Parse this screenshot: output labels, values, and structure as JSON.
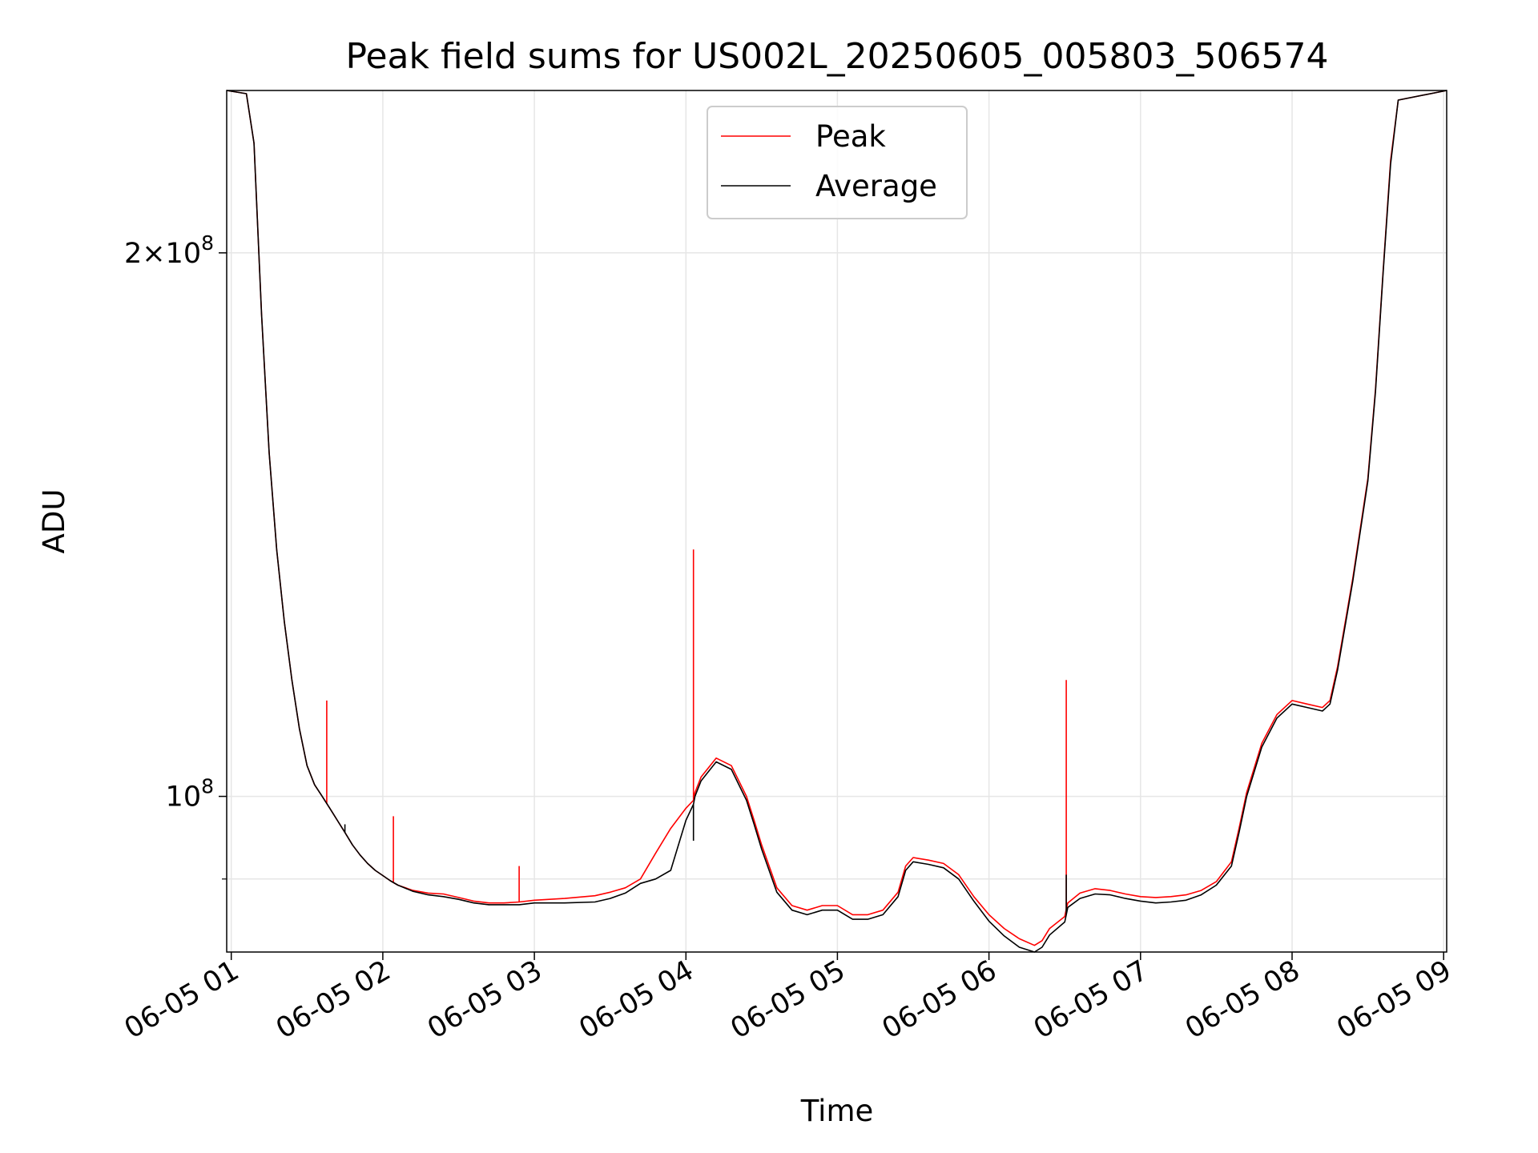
{
  "chart_data": {
    "type": "line",
    "title": "Peak field sums for US002L_20250605_005803_506574",
    "xlabel": "Time",
    "ylabel": "ADU",
    "yscale": "log",
    "grid": true,
    "legend_location": "upper center",
    "x_unit": "hours after 06-05 00:00",
    "xlim": [
      0.97,
      9.02
    ],
    "ylim": [
      82000000,
      246000000
    ],
    "x_ticks": [
      {
        "value": 1,
        "label": "06-05 01"
      },
      {
        "value": 2,
        "label": "06-05 02"
      },
      {
        "value": 3,
        "label": "06-05 03"
      },
      {
        "value": 4,
        "label": "06-05 04"
      },
      {
        "value": 5,
        "label": "06-05 05"
      },
      {
        "value": 6,
        "label": "06-05 06"
      },
      {
        "value": 7,
        "label": "06-05 07"
      },
      {
        "value": 8,
        "label": "06-05 08"
      },
      {
        "value": 9,
        "label": "06-05 09"
      }
    ],
    "y_ticks": [
      {
        "value": 100000000,
        "mantissa": "",
        "exponent": "8",
        "label": "10^8"
      },
      {
        "value": 200000000,
        "mantissa": "2",
        "exponent": "8",
        "label": "2×10^8"
      }
    ],
    "y_minor_gridlines": [
      90000000
    ],
    "series": [
      {
        "name": "Peak",
        "color": "#ff0000",
        "x": [
          0.97,
          1.1,
          1.15,
          1.2,
          1.25,
          1.3,
          1.35,
          1.4,
          1.45,
          1.5,
          1.55,
          1.6,
          1.65,
          1.7,
          1.75,
          1.8,
          1.85,
          1.9,
          1.95,
          2.0,
          2.05,
          2.1,
          2.2,
          2.3,
          2.4,
          2.5,
          2.6,
          2.7,
          2.8,
          2.9,
          3.0,
          3.2,
          3.4,
          3.5,
          3.6,
          3.7,
          3.8,
          3.9,
          4.0,
          4.05,
          4.06,
          4.07,
          4.1,
          4.2,
          4.3,
          4.4,
          4.45,
          4.5,
          4.6,
          4.7,
          4.8,
          4.9,
          5.0,
          5.1,
          5.2,
          5.3,
          5.4,
          5.45,
          5.5,
          5.6,
          5.7,
          5.8,
          5.9,
          6.0,
          6.1,
          6.2,
          6.3,
          6.35,
          6.4,
          6.5,
          6.51,
          6.52,
          6.6,
          6.7,
          6.8,
          6.9,
          7.0,
          7.1,
          7.2,
          7.3,
          7.4,
          7.5,
          7.6,
          7.65,
          7.7,
          7.8,
          7.9,
          8.0,
          8.1,
          8.2,
          8.25,
          8.3,
          8.4,
          8.5,
          8.55,
          8.6,
          8.65,
          8.7,
          9.02
        ],
        "y": [
          246000000,
          245000000,
          230000000,
          185000000,
          155000000,
          137000000,
          125000000,
          116000000,
          109000000,
          104000000,
          101500000,
          100000000,
          98500000,
          97000000,
          95500000,
          94000000,
          92800000,
          91800000,
          91000000,
          90400000,
          89800000,
          89300000,
          88700000,
          88400000,
          88300000,
          87900000,
          87500000,
          87300000,
          87300000,
          87400000,
          87600000,
          87800000,
          88100000,
          88500000,
          89000000,
          90000000,
          93000000,
          96000000,
          98500000,
          99500000,
          100500000,
          101000000,
          102500000,
          105000000,
          104000000,
          100000000,
          97000000,
          94000000,
          89000000,
          87000000,
          86500000,
          87000000,
          87000000,
          86000000,
          86000000,
          86500000,
          88500000,
          91500000,
          92500000,
          92200000,
          91800000,
          90500000,
          88000000,
          86000000,
          84500000,
          83400000,
          82700000,
          83200000,
          84500000,
          85800000,
          86600000,
          87300000,
          88400000,
          88900000,
          88700000,
          88300000,
          88000000,
          87900000,
          88000000,
          88200000,
          88700000,
          89700000,
          92000000,
          96000000,
          100500000,
          107000000,
          111000000,
          113000000,
          112500000,
          112000000,
          113000000,
          118000000,
          132000000,
          150000000,
          168000000,
          195000000,
          225000000,
          243000000,
          246000000
        ],
        "spikes": [
          {
            "x": 4.05,
            "y": 137000000
          },
          {
            "x": 6.51,
            "y": 116000000
          },
          {
            "x": 1.63,
            "y": 113000000
          },
          {
            "x": 2.07,
            "y": 97500000
          },
          {
            "x": 2.9,
            "y": 91500000
          }
        ]
      },
      {
        "name": "Average",
        "color": "#000000",
        "x": [
          0.97,
          1.1,
          1.15,
          1.2,
          1.25,
          1.3,
          1.35,
          1.4,
          1.45,
          1.5,
          1.55,
          1.6,
          1.65,
          1.7,
          1.75,
          1.8,
          1.85,
          1.9,
          1.95,
          2.0,
          2.05,
          2.1,
          2.2,
          2.3,
          2.4,
          2.5,
          2.6,
          2.7,
          2.8,
          2.9,
          3.0,
          3.2,
          3.4,
          3.5,
          3.6,
          3.7,
          3.8,
          3.9,
          4.0,
          4.05,
          4.06,
          4.07,
          4.1,
          4.2,
          4.3,
          4.4,
          4.45,
          4.5,
          4.6,
          4.7,
          4.8,
          4.9,
          5.0,
          5.1,
          5.2,
          5.3,
          5.4,
          5.45,
          5.5,
          5.6,
          5.7,
          5.8,
          5.9,
          6.0,
          6.1,
          6.2,
          6.3,
          6.35,
          6.4,
          6.5,
          6.51,
          6.52,
          6.6,
          6.7,
          6.8,
          6.9,
          7.0,
          7.1,
          7.2,
          7.3,
          7.4,
          7.5,
          7.6,
          7.65,
          7.7,
          7.8,
          7.9,
          8.0,
          8.1,
          8.2,
          8.25,
          8.3,
          8.4,
          8.5,
          8.55,
          8.6,
          8.65,
          8.7,
          9.02
        ],
        "y": [
          246000000,
          245000000,
          230000000,
          185000000,
          155000000,
          137000000,
          125000000,
          116000000,
          109000000,
          104000000,
          101500000,
          100000000,
          98500000,
          97000000,
          95500000,
          94000000,
          92800000,
          91800000,
          91000000,
          90400000,
          89800000,
          89300000,
          88600000,
          88200000,
          88000000,
          87700000,
          87300000,
          87100000,
          87100000,
          87100000,
          87300000,
          87300000,
          87400000,
          87800000,
          88400000,
          89500000,
          90000000,
          91000000,
          97000000,
          99000000,
          100000000,
          100500000,
          102000000,
          104500000,
          103500000,
          99500000,
          96500000,
          93500000,
          88500000,
          86500000,
          86000000,
          86500000,
          86500000,
          85500000,
          85500000,
          86000000,
          88000000,
          91000000,
          92000000,
          91700000,
          91300000,
          90000000,
          87500000,
          85300000,
          83700000,
          82500000,
          82000000,
          82500000,
          83800000,
          85200000,
          86000000,
          86800000,
          87800000,
          88300000,
          88200000,
          87800000,
          87500000,
          87300000,
          87400000,
          87600000,
          88200000,
          89300000,
          91500000,
          95500000,
          100000000,
          106500000,
          110500000,
          112500000,
          112000000,
          111500000,
          112500000,
          117500000,
          131500000,
          149500000,
          167500000,
          194500000,
          224000000,
          243000000,
          246000000
        ],
        "spikes": [
          {
            "x": 4.05,
            "y": 94500000
          },
          {
            "x": 6.51,
            "y": 90500000
          },
          {
            "x": 1.75,
            "y": 96500000
          }
        ]
      }
    ]
  }
}
